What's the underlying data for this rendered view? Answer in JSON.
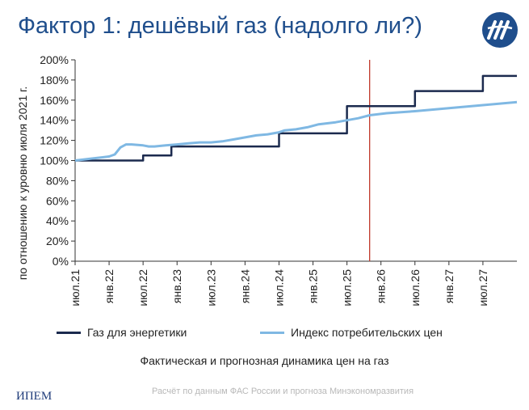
{
  "title": "Фактор 1: дешёвый газ (надолго ли?)",
  "logo_name": "ipem-logo",
  "org": "ИПЕМ",
  "caption": "Фактическая и прогнозная динамика цен на газ",
  "source": "Расчёт по данным ФАС России и прогноза Минэкономразвития",
  "chart_data": {
    "type": "line",
    "ylabel": "по отношению к уровню июля 2021 г.",
    "ylim": [
      0,
      200
    ],
    "y_ticks": [
      "0%",
      "20%",
      "40%",
      "60%",
      "80%",
      "100%",
      "120%",
      "140%",
      "160%",
      "180%",
      "200%"
    ],
    "x_ticks": [
      "июл.21",
      "янв.22",
      "июл.22",
      "янв.23",
      "июл.23",
      "янв.24",
      "июл.24",
      "янв.25",
      "июл.25",
      "янв.26",
      "июл.26",
      "янв.27",
      "июл.27"
    ],
    "x_range_months": [
      0,
      78
    ],
    "vertical_marker": {
      "x_month": 52,
      "color": "#c0392b"
    },
    "legend_placement": "bottom",
    "series": [
      {
        "name": "Газ для энергетики",
        "color": "#1b2a4e",
        "step": true,
        "points": [
          [
            0,
            100
          ],
          [
            12,
            100
          ],
          [
            12,
            105
          ],
          [
            17,
            105
          ],
          [
            17,
            114
          ],
          [
            36,
            114
          ],
          [
            36,
            127
          ],
          [
            48,
            127
          ],
          [
            48,
            154
          ],
          [
            60,
            154
          ],
          [
            60,
            169
          ],
          [
            72,
            169
          ],
          [
            72,
            184
          ],
          [
            78,
            184
          ]
        ]
      },
      {
        "name": "Индекс потребительских цен",
        "color": "#7fb8e3",
        "step": false,
        "points": [
          [
            0,
            100
          ],
          [
            3,
            102
          ],
          [
            6,
            104
          ],
          [
            7,
            106
          ],
          [
            8,
            113
          ],
          [
            9,
            116
          ],
          [
            10,
            116
          ],
          [
            12,
            115
          ],
          [
            13,
            114
          ],
          [
            14,
            114
          ],
          [
            16,
            115
          ],
          [
            18,
            116
          ],
          [
            20,
            117
          ],
          [
            22,
            118
          ],
          [
            24,
            118
          ],
          [
            26,
            119
          ],
          [
            28,
            121
          ],
          [
            30,
            123
          ],
          [
            32,
            125
          ],
          [
            34,
            126
          ],
          [
            36,
            128
          ],
          [
            37,
            130
          ],
          [
            39,
            131
          ],
          [
            41,
            133
          ],
          [
            43,
            136
          ],
          [
            46,
            138
          ],
          [
            48,
            140
          ],
          [
            50,
            142
          ],
          [
            52,
            145
          ],
          [
            55,
            147
          ],
          [
            60,
            149
          ],
          [
            66,
            152
          ],
          [
            72,
            155
          ],
          [
            78,
            158
          ]
        ]
      }
    ]
  }
}
